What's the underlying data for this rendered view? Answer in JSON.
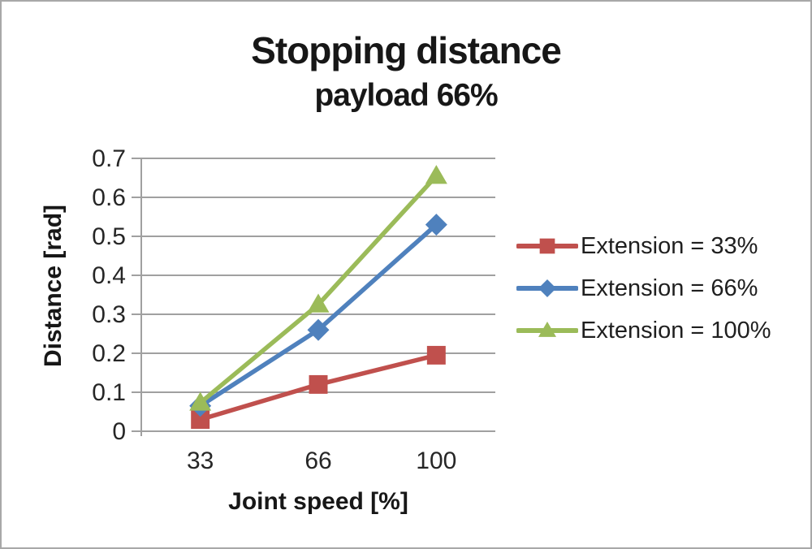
{
  "page": {
    "background": "#ffffff",
    "border_color": "#a8a8a8"
  },
  "chart_data": {
    "type": "line",
    "title": "Stopping distance",
    "subtitle": "payload 66%",
    "xlabel": "Joint speed [%]",
    "ylabel": "Distance [rad]",
    "categories": [
      "33",
      "66",
      "100"
    ],
    "ylim": [
      0,
      0.7
    ],
    "yticks": [
      0,
      0.1,
      0.2,
      0.3,
      0.4,
      0.5,
      0.6,
      0.7
    ],
    "grid": true,
    "legend_position": "right",
    "gridline_color": "#a0a0a0",
    "axis_color": "#a0a0a0",
    "text_color": "#262626",
    "series": [
      {
        "name": "Extension = 33%",
        "marker": "square",
        "color": "#C0504D",
        "values": [
          0.03,
          0.12,
          0.195
        ]
      },
      {
        "name": "Extension = 66%",
        "marker": "diamond",
        "color": "#4F81BD",
        "values": [
          0.065,
          0.26,
          0.53
        ]
      },
      {
        "name": "Extension = 100%",
        "marker": "triangle",
        "color": "#9BBB59",
        "values": [
          0.073,
          0.325,
          0.655
        ]
      }
    ]
  }
}
